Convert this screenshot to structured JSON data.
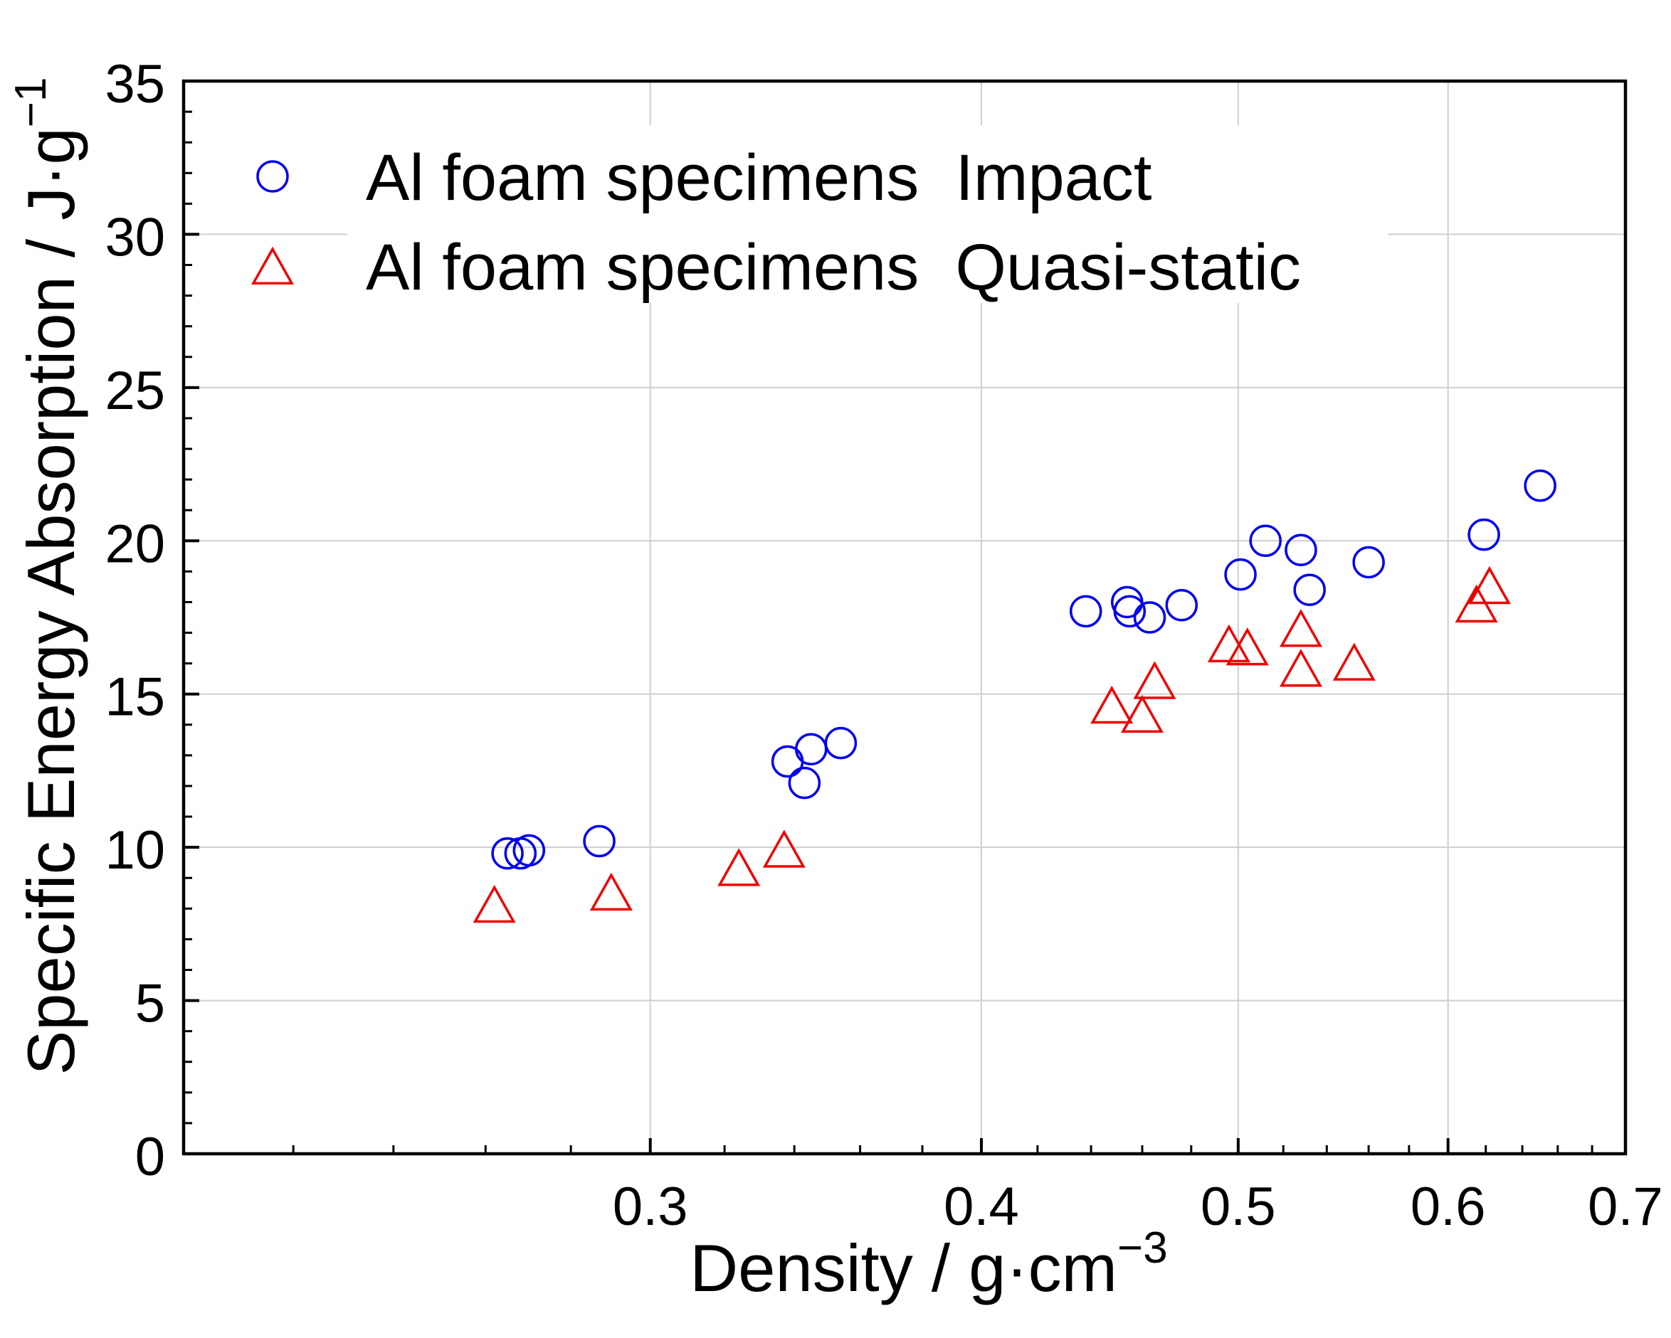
{
  "chart_data": {
    "type": "scatter",
    "title": "",
    "xlabel": "Density / g·cm",
    "xlabel_sup": "−3",
    "ylabel": "Specific Energy Absorption / J·g",
    "ylabel_sup": "−1",
    "xlim": [
      0.2,
      0.7
    ],
    "ylim": [
      0,
      35
    ],
    "x_scale": "log",
    "grid": true,
    "legend_position": "top-left",
    "x_ticks": [
      {
        "value": 0.3,
        "label": "0.3"
      },
      {
        "value": 0.4,
        "label": "0.4"
      },
      {
        "value": 0.5,
        "label": "0.5"
      },
      {
        "value": 0.6,
        "label": "0.6"
      },
      {
        "value": 0.7,
        "label": "0.7"
      }
    ],
    "y_ticks": [
      {
        "value": 0,
        "label": "0"
      },
      {
        "value": 5,
        "label": "5"
      },
      {
        "value": 10,
        "label": "10"
      },
      {
        "value": 15,
        "label": "15"
      },
      {
        "value": 20,
        "label": "20"
      },
      {
        "value": 25,
        "label": "25"
      },
      {
        "value": 30,
        "label": "30"
      },
      {
        "value": 35,
        "label": "35"
      }
    ],
    "series": [
      {
        "name": "Al foam specimens  Impact",
        "marker": "circle",
        "color": "#0000ee",
        "points": [
          {
            "x": 0.265,
            "y": 9.8
          },
          {
            "x": 0.268,
            "y": 9.8
          },
          {
            "x": 0.27,
            "y": 9.9
          },
          {
            "x": 0.287,
            "y": 10.2
          },
          {
            "x": 0.338,
            "y": 12.8
          },
          {
            "x": 0.343,
            "y": 12.1
          },
          {
            "x": 0.345,
            "y": 13.2
          },
          {
            "x": 0.354,
            "y": 13.4
          },
          {
            "x": 0.438,
            "y": 17.7
          },
          {
            "x": 0.455,
            "y": 17.7
          },
          {
            "x": 0.454,
            "y": 18.0
          },
          {
            "x": 0.463,
            "y": 17.5
          },
          {
            "x": 0.476,
            "y": 17.9
          },
          {
            "x": 0.501,
            "y": 18.9
          },
          {
            "x": 0.512,
            "y": 20.0
          },
          {
            "x": 0.528,
            "y": 19.7
          },
          {
            "x": 0.532,
            "y": 18.4
          },
          {
            "x": 0.56,
            "y": 19.3
          },
          {
            "x": 0.619,
            "y": 20.2
          },
          {
            "x": 0.65,
            "y": 21.8
          }
        ]
      },
      {
        "name": "Al foam specimens  Quasi-static",
        "marker": "triangle",
        "color": "#ee0000",
        "points": [
          {
            "x": 0.262,
            "y": 8.0
          },
          {
            "x": 0.29,
            "y": 8.4
          },
          {
            "x": 0.324,
            "y": 9.2
          },
          {
            "x": 0.337,
            "y": 9.8
          },
          {
            "x": 0.448,
            "y": 14.5
          },
          {
            "x": 0.46,
            "y": 14.2
          },
          {
            "x": 0.465,
            "y": 15.3
          },
          {
            "x": 0.496,
            "y": 16.5
          },
          {
            "x": 0.504,
            "y": 16.4
          },
          {
            "x": 0.528,
            "y": 17.0
          },
          {
            "x": 0.528,
            "y": 15.7
          },
          {
            "x": 0.553,
            "y": 15.9
          },
          {
            "x": 0.615,
            "y": 17.8
          },
          {
            "x": 0.622,
            "y": 18.4
          }
        ]
      }
    ]
  }
}
